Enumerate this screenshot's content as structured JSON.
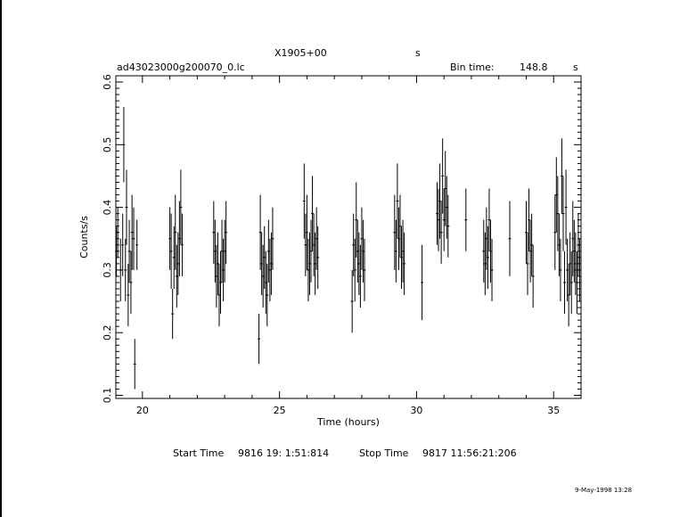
{
  "header": {
    "source": "X1905+00",
    "source_suffix": "s",
    "filename": "ad43023000g200070_0.lc",
    "bin_label": "Bin time:",
    "bin_value": "148.8",
    "bin_unit": "s"
  },
  "footer": {
    "start_label": "Start Time",
    "start_value": "9816 19: 1:51:814",
    "stop_label": "Stop Time",
    "stop_value": "9817 11:56:21:206",
    "date_stamp": "9-May-1998 13:28"
  },
  "chart_data": {
    "type": "scatter",
    "xlabel": "Time (hours)",
    "ylabel": "Counts/s",
    "xlim": [
      19.03,
      36.0
    ],
    "ylim": [
      0.095,
      0.61
    ],
    "xticks": [
      20,
      25,
      30,
      35
    ],
    "yticks": [
      0.1,
      0.2,
      0.3,
      0.4,
      0.5,
      0.6
    ],
    "xtick_labels": [
      "20",
      "25",
      "30",
      "35"
    ],
    "ytick_labels": [
      "0.1",
      "0.2",
      "0.3",
      "0.4",
      "0.5",
      "0.6"
    ],
    "grid": false,
    "series": [
      {
        "x": [
          19.05,
          19.1,
          19.2,
          19.28,
          19.32,
          19.38,
          19.42,
          19.48,
          19.52,
          19.58,
          19.62,
          19.68,
          19.72,
          19.8,
          21.0,
          21.05,
          21.1,
          21.15,
          21.2,
          21.25,
          21.3,
          21.35,
          21.4,
          21.45,
          22.6,
          22.65,
          22.7,
          22.75,
          22.8,
          22.85,
          22.9,
          22.95,
          23.0,
          23.05,
          24.25,
          24.3,
          24.35,
          24.4,
          24.45,
          24.5,
          24.55,
          24.6,
          24.65,
          24.7,
          24.75,
          25.9,
          25.95,
          26.0,
          26.05,
          26.1,
          26.15,
          26.2,
          26.25,
          26.3,
          26.35,
          26.4,
          27.65,
          27.7,
          27.75,
          27.8,
          27.85,
          27.9,
          27.95,
          28.0,
          28.05,
          28.1,
          29.2,
          29.25,
          29.3,
          29.35,
          29.4,
          29.45,
          29.5,
          29.55,
          30.2,
          30.75,
          30.8,
          30.85,
          30.9,
          30.95,
          31.0,
          31.05,
          31.1,
          31.15,
          31.8,
          32.45,
          32.5,
          32.55,
          32.6,
          32.65,
          32.7,
          32.75,
          33.4,
          34.0,
          34.05,
          34.1,
          34.15,
          34.2,
          34.25,
          35.05,
          35.1,
          35.15,
          35.2,
          35.25,
          35.3,
          35.35,
          35.4,
          35.45,
          35.5,
          35.55,
          35.6,
          35.65,
          35.7,
          35.75,
          35.8,
          35.85,
          35.9,
          35.95
        ],
        "y": [
          0.33,
          0.36,
          0.3,
          0.34,
          0.5,
          0.3,
          0.4,
          0.26,
          0.33,
          0.28,
          0.36,
          0.35,
          0.15,
          0.34,
          0.35,
          0.33,
          0.23,
          0.32,
          0.36,
          0.29,
          0.31,
          0.35,
          0.4,
          0.34,
          0.36,
          0.33,
          0.29,
          0.31,
          0.26,
          0.28,
          0.33,
          0.3,
          0.33,
          0.36,
          0.19,
          0.36,
          0.31,
          0.29,
          0.32,
          0.28,
          0.26,
          0.33,
          0.3,
          0.31,
          0.35,
          0.41,
          0.34,
          0.36,
          0.3,
          0.31,
          0.33,
          0.39,
          0.34,
          0.31,
          0.35,
          0.32,
          0.25,
          0.34,
          0.3,
          0.38,
          0.33,
          0.31,
          0.29,
          0.35,
          0.33,
          0.3,
          0.36,
          0.33,
          0.41,
          0.35,
          0.37,
          0.32,
          0.33,
          0.31,
          0.28,
          0.39,
          0.38,
          0.41,
          0.36,
          0.45,
          0.38,
          0.43,
          0.4,
          0.37,
          0.38,
          0.33,
          0.31,
          0.35,
          0.32,
          0.38,
          0.33,
          0.3,
          0.35,
          0.36,
          0.31,
          0.38,
          0.33,
          0.34,
          0.29,
          0.36,
          0.42,
          0.39,
          0.34,
          0.3,
          0.45,
          0.39,
          0.28,
          0.4,
          0.3,
          0.26,
          0.31,
          0.28,
          0.35,
          0.33,
          0.31,
          0.28,
          0.34,
          0.3
        ],
        "err": [
          0.04,
          0.04,
          0.05,
          0.05,
          0.06,
          0.05,
          0.06,
          0.05,
          0.05,
          0.05,
          0.06,
          0.05,
          0.04,
          0.04,
          0.05,
          0.06,
          0.04,
          0.05,
          0.06,
          0.05,
          0.05,
          0.06,
          0.06,
          0.05,
          0.05,
          0.05,
          0.05,
          0.05,
          0.05,
          0.05,
          0.05,
          0.05,
          0.05,
          0.05,
          0.04,
          0.06,
          0.05,
          0.05,
          0.05,
          0.05,
          0.05,
          0.05,
          0.05,
          0.05,
          0.05,
          0.06,
          0.05,
          0.06,
          0.05,
          0.05,
          0.05,
          0.06,
          0.05,
          0.05,
          0.05,
          0.05,
          0.05,
          0.05,
          0.05,
          0.06,
          0.05,
          0.05,
          0.05,
          0.05,
          0.05,
          0.05,
          0.06,
          0.05,
          0.06,
          0.05,
          0.05,
          0.05,
          0.05,
          0.05,
          0.06,
          0.05,
          0.05,
          0.06,
          0.05,
          0.06,
          0.05,
          0.06,
          0.05,
          0.05,
          0.05,
          0.05,
          0.05,
          0.05,
          0.05,
          0.05,
          0.05,
          0.05,
          0.06,
          0.05,
          0.05,
          0.05,
          0.05,
          0.05,
          0.05,
          0.06,
          0.06,
          0.06,
          0.05,
          0.05,
          0.06,
          0.06,
          0.05,
          0.06,
          0.05,
          0.05,
          0.05,
          0.05,
          0.06,
          0.05,
          0.05,
          0.05,
          0.05,
          0.05
        ]
      }
    ]
  }
}
